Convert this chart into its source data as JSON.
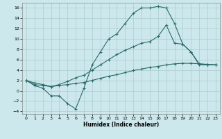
{
  "xlabel": "Humidex (Indice chaleur)",
  "bg_color": "#cce8ec",
  "grid_color": "#aacccc",
  "line_color": "#2a6b6b",
  "xlim": [
    -0.5,
    23.5
  ],
  "ylim": [
    -4.5,
    17
  ],
  "xticks": [
    0,
    1,
    2,
    3,
    4,
    5,
    6,
    7,
    8,
    9,
    10,
    11,
    12,
    13,
    14,
    15,
    16,
    17,
    18,
    19,
    20,
    21,
    22,
    23
  ],
  "yticks": [
    -4,
    -2,
    0,
    2,
    4,
    6,
    8,
    10,
    12,
    14,
    16
  ],
  "curve1_x": [
    0,
    1,
    2,
    3,
    4,
    5,
    6,
    7,
    8,
    9,
    10,
    11,
    12,
    13,
    14,
    15,
    16,
    17,
    18,
    19,
    20,
    21,
    22,
    23
  ],
  "curve1_y": [
    2.0,
    1.0,
    0.5,
    -1.0,
    -1.0,
    -2.5,
    -3.5,
    0.5,
    5.0,
    7.5,
    10.0,
    11.0,
    13.0,
    15.0,
    16.0,
    16.0,
    16.3,
    16.0,
    13.0,
    9.0,
    7.5,
    5.0,
    5.0,
    5.0
  ],
  "curve2_x": [
    0,
    1,
    2,
    3,
    4,
    5,
    6,
    7,
    8,
    9,
    10,
    11,
    12,
    13,
    14,
    15,
    16,
    17,
    18,
    19,
    20,
    21,
    22,
    23
  ],
  "curve2_y": [
    2.0,
    1.2,
    1.0,
    0.8,
    1.0,
    1.2,
    1.4,
    1.6,
    2.0,
    2.4,
    2.8,
    3.1,
    3.5,
    3.9,
    4.2,
    4.5,
    4.7,
    5.0,
    5.2,
    5.3,
    5.3,
    5.2,
    5.1,
    5.0
  ],
  "curve3_x": [
    0,
    1,
    2,
    3,
    4,
    5,
    6,
    7,
    8,
    9,
    10,
    11,
    12,
    13,
    14,
    15,
    16,
    17,
    18,
    19,
    20,
    21,
    22,
    23
  ],
  "curve3_y": [
    2.0,
    1.5,
    1.2,
    0.8,
    1.2,
    1.8,
    2.5,
    3.0,
    4.0,
    5.0,
    6.0,
    7.0,
    7.8,
    8.5,
    9.2,
    9.5,
    10.5,
    12.7,
    9.2,
    9.0,
    7.5,
    5.2,
    5.0,
    5.0
  ]
}
